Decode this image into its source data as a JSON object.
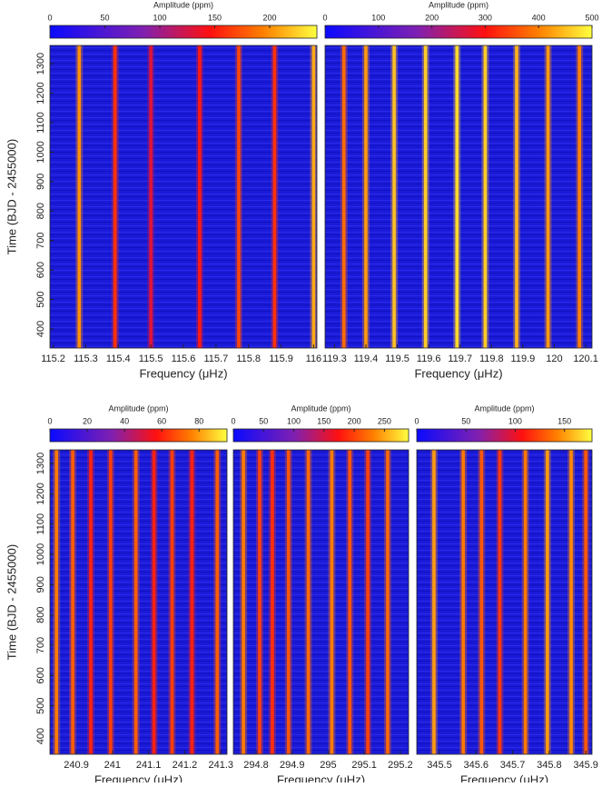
{
  "chart_data": [
    {
      "type": "heatmap",
      "x_label": "Frequency (μHz)",
      "y_label": "Time (BJD - 2455000)",
      "colorbar_label": "Amplitude (ppm)",
      "xlim": [
        115.19,
        116.01
      ],
      "xticks": [
        115.2,
        115.3,
        115.4,
        115.5,
        115.6,
        115.7,
        115.8,
        115.9,
        116
      ],
      "ylim": [
        335,
        1362
      ],
      "yticks": [
        400,
        500,
        600,
        700,
        800,
        900,
        1000,
        1100,
        1200,
        1300
      ],
      "colorbar_lim": [
        0,
        243
      ],
      "colorbar_ticks": [
        0,
        50,
        100,
        150,
        200
      ],
      "x": [
        115.28,
        115.39,
        115.5,
        115.65,
        115.77,
        115.88,
        116.0
      ],
      "values": [
        200,
        160,
        130,
        150,
        170,
        160,
        210
      ]
    },
    {
      "type": "heatmap",
      "x_label": "Frequency (μHz)",
      "colorbar_label": "Amplitude (ppm)",
      "xlim": [
        119.27,
        120.12
      ],
      "xticks": [
        119.3,
        119.4,
        119.5,
        119.6,
        119.7,
        119.8,
        119.9,
        120,
        120.1
      ],
      "ylim": [
        335,
        1362
      ],
      "yticks": [
        400,
        500,
        600,
        700,
        800,
        900,
        1000,
        1100,
        1200,
        1300
      ],
      "colorbar_lim": [
        0,
        500
      ],
      "colorbar_ticks": [
        0,
        100,
        200,
        300,
        400,
        500
      ],
      "x": [
        119.33,
        119.4,
        119.49,
        119.59,
        119.69,
        119.78,
        119.88,
        119.98,
        120.08
      ],
      "values": [
        380,
        420,
        450,
        460,
        470,
        460,
        440,
        420,
        400
      ]
    },
    {
      "type": "heatmap",
      "x_label": "Frequency (μHz)",
      "y_label": "Time (BJD - 2455000)",
      "colorbar_label": "Amplitude (ppm)",
      "xlim": [
        240.827,
        241.317
      ],
      "xticks": [
        240.9,
        241,
        241.1,
        241.2,
        241.3
      ],
      "ylim": [
        340,
        1345
      ],
      "yticks": [
        400,
        500,
        600,
        700,
        800,
        900,
        1000,
        1100,
        1200,
        1300
      ],
      "colorbar_lim": [
        0,
        95
      ],
      "colorbar_ticks": [
        0,
        20,
        40,
        60,
        80
      ],
      "x": [
        240.845,
        240.89,
        240.94,
        240.995,
        241.065,
        241.115,
        241.165,
        241.22,
        241.29
      ],
      "values": [
        75,
        70,
        60,
        65,
        70,
        60,
        65,
        60,
        70
      ]
    },
    {
      "type": "heatmap",
      "x_label": "Frequency (μHz)",
      "colorbar_label": "Amplitude (ppm)",
      "xlim": [
        294.737,
        295.223
      ],
      "xticks": [
        294.8,
        294.9,
        295,
        295.1,
        295.2
      ],
      "ylim": [
        340,
        1345
      ],
      "yticks": [
        400,
        500,
        600,
        700,
        800,
        900,
        1000,
        1100,
        1200,
        1300
      ],
      "colorbar_lim": [
        0,
        290
      ],
      "colorbar_ticks": [
        0,
        50,
        100,
        150,
        200,
        250
      ],
      "x": [
        294.765,
        294.81,
        294.845,
        294.89,
        294.945,
        295.01,
        295.06,
        295.11,
        295.165
      ],
      "values": [
        230,
        200,
        190,
        210,
        220,
        230,
        210,
        200,
        220
      ]
    },
    {
      "type": "heatmap",
      "x_label": "Frequency (μHz)",
      "colorbar_label": "Amplitude (ppm)",
      "xlim": [
        345.438,
        345.917
      ],
      "xticks": [
        345.5,
        345.6,
        345.7,
        345.8,
        345.9
      ],
      "ylim": [
        340,
        1345
      ],
      "yticks": [
        400,
        500,
        600,
        700,
        800,
        900,
        1000,
        1100,
        1200,
        1300
      ],
      "colorbar_lim": [
        0,
        178
      ],
      "colorbar_ticks": [
        0,
        50,
        100,
        150
      ],
      "x": [
        345.485,
        345.565,
        345.615,
        345.665,
        345.735,
        345.795,
        345.86,
        345.9
      ],
      "values": [
        150,
        140,
        130,
        120,
        140,
        150,
        145,
        130
      ]
    }
  ]
}
